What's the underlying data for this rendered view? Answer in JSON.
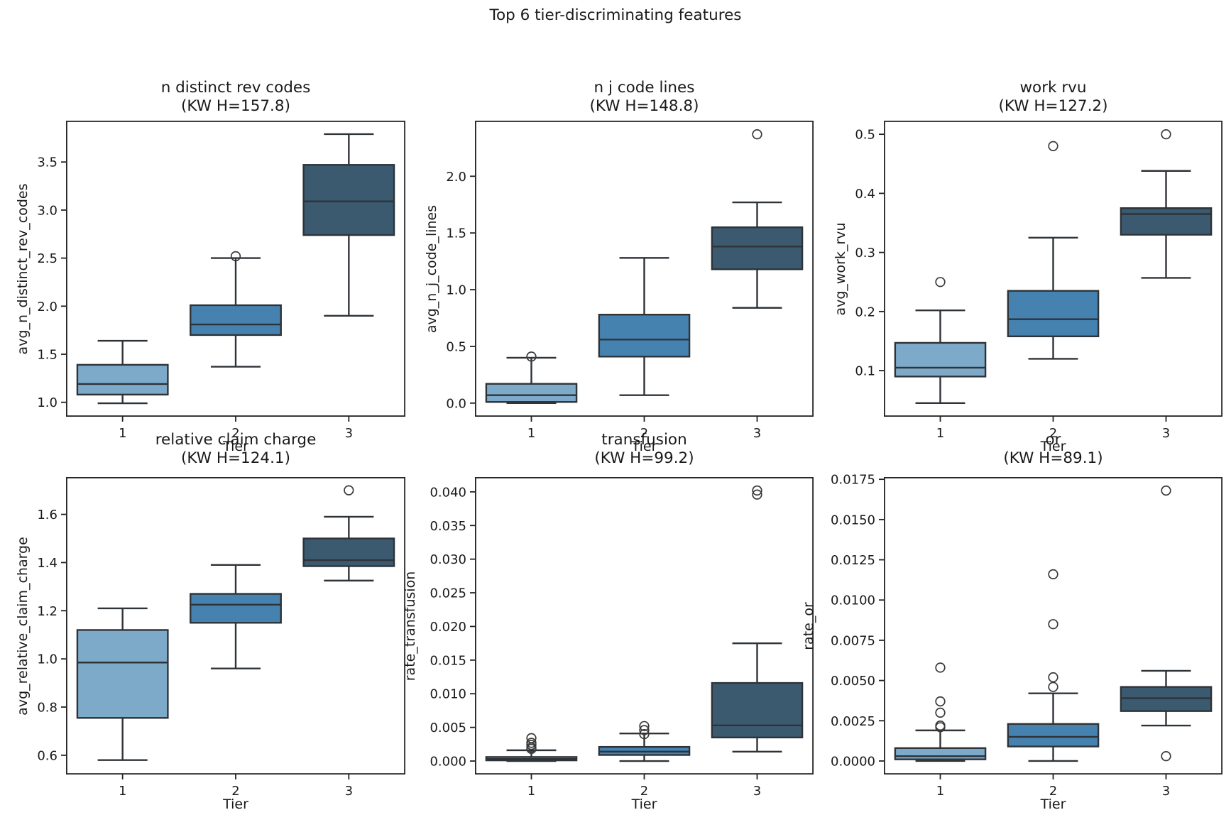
{
  "figure": {
    "title": "Top 6 tier-discriminating features",
    "background": "#ffffff"
  },
  "palette": {
    "tier_colors": [
      "#7daac9",
      "#4682b0",
      "#3b5a70"
    ],
    "box_edge": "#2e3338",
    "outlier_stroke": "#3a3a3a",
    "spine": "#222222",
    "text": "#1a1a1a"
  },
  "chart_data": [
    {
      "type": "box",
      "title": "n distinct rev codes",
      "subtitle": "(KW H=157.8)",
      "kw_h": 157.8,
      "xlabel": "Tier",
      "ylabel": "avg_n_distinct_rev_codes",
      "categories": [
        "1",
        "2",
        "3"
      ],
      "ylim": [
        0.85,
        3.93
      ],
      "ytick_values": [
        1.0,
        1.5,
        2.0,
        2.5,
        3.0,
        3.5
      ],
      "ytick_labels": [
        "1.0",
        "1.5",
        "2.0",
        "2.5",
        "3.0",
        "3.5"
      ],
      "boxes": [
        {
          "category": "1",
          "whisker_low": 0.99,
          "q1": 1.08,
          "median": 1.19,
          "q3": 1.39,
          "whisker_high": 1.64,
          "outliers": []
        },
        {
          "category": "2",
          "whisker_low": 1.37,
          "q1": 1.7,
          "median": 1.81,
          "q3": 2.01,
          "whisker_high": 2.5,
          "outliers": [
            2.52
          ]
        },
        {
          "category": "3",
          "whisker_low": 1.9,
          "q1": 2.74,
          "median": 3.09,
          "q3": 3.47,
          "whisker_high": 3.79,
          "outliers": []
        }
      ]
    },
    {
      "type": "box",
      "title": "n j code lines",
      "subtitle": "(KW H=148.8)",
      "kw_h": 148.8,
      "xlabel": "Tier",
      "ylabel": "avg_n_j_code_lines",
      "categories": [
        "1",
        "2",
        "3"
      ],
      "ylim": [
        -0.12,
        2.49
      ],
      "ytick_values": [
        0.0,
        0.5,
        1.0,
        1.5,
        2.0
      ],
      "ytick_labels": [
        "0.0",
        "0.5",
        "1.0",
        "1.5",
        "2.0"
      ],
      "boxes": [
        {
          "category": "1",
          "whisker_low": 0.0,
          "q1": 0.01,
          "median": 0.07,
          "q3": 0.17,
          "whisker_high": 0.4,
          "outliers": [
            0.41
          ]
        },
        {
          "category": "2",
          "whisker_low": 0.07,
          "q1": 0.41,
          "median": 0.56,
          "q3": 0.78,
          "whisker_high": 1.28,
          "outliers": []
        },
        {
          "category": "3",
          "whisker_low": 0.84,
          "q1": 1.18,
          "median": 1.38,
          "q3": 1.55,
          "whisker_high": 1.77,
          "outliers": [
            2.37
          ]
        }
      ]
    },
    {
      "type": "box",
      "title": "work rvu",
      "subtitle": "(KW H=127.2)",
      "kw_h": 127.2,
      "xlabel": "Tier",
      "ylabel": "avg_work_rvu",
      "categories": [
        "1",
        "2",
        "3"
      ],
      "ylim": [
        0.022,
        0.523
      ],
      "ytick_values": [
        0.1,
        0.2,
        0.3,
        0.4,
        0.5
      ],
      "ytick_labels": [
        "0.1",
        "0.2",
        "0.3",
        "0.4",
        "0.5"
      ],
      "boxes": [
        {
          "category": "1",
          "whisker_low": 0.045,
          "q1": 0.09,
          "median": 0.105,
          "q3": 0.147,
          "whisker_high": 0.202,
          "outliers": [
            0.25
          ]
        },
        {
          "category": "2",
          "whisker_low": 0.12,
          "q1": 0.158,
          "median": 0.187,
          "q3": 0.235,
          "whisker_high": 0.325,
          "outliers": [
            0.48
          ]
        },
        {
          "category": "3",
          "whisker_low": 0.257,
          "q1": 0.33,
          "median": 0.365,
          "q3": 0.375,
          "whisker_high": 0.438,
          "outliers": [
            0.5
          ]
        }
      ]
    },
    {
      "type": "box",
      "title": "relative claim charge",
      "subtitle": "(KW H=124.1)",
      "kw_h": 124.1,
      "xlabel": "Tier",
      "ylabel": "avg_relative_claim_charge",
      "categories": [
        "1",
        "2",
        "3"
      ],
      "ylim": [
        0.52,
        1.755
      ],
      "ytick_values": [
        0.6,
        0.8,
        1.0,
        1.2,
        1.4,
        1.6
      ],
      "ytick_labels": [
        "0.6",
        "0.8",
        "1.0",
        "1.2",
        "1.4",
        "1.6"
      ],
      "boxes": [
        {
          "category": "1",
          "whisker_low": 0.58,
          "q1": 0.755,
          "median": 0.985,
          "q3": 1.12,
          "whisker_high": 1.21,
          "outliers": []
        },
        {
          "category": "2",
          "whisker_low": 0.96,
          "q1": 1.15,
          "median": 1.225,
          "q3": 1.27,
          "whisker_high": 1.39,
          "outliers": []
        },
        {
          "category": "3",
          "whisker_low": 1.325,
          "q1": 1.385,
          "median": 1.41,
          "q3": 1.5,
          "whisker_high": 1.59,
          "outliers": [
            1.7
          ]
        }
      ]
    },
    {
      "type": "box",
      "title": "transfusion",
      "subtitle": "(KW H=99.2)",
      "kw_h": 99.2,
      "xlabel": "Tier",
      "ylabel": "rate_transfusion",
      "categories": [
        "1",
        "2",
        "3"
      ],
      "ylim": [
        -0.002,
        0.0422
      ],
      "ytick_values": [
        0.0,
        0.005,
        0.01,
        0.015,
        0.02,
        0.025,
        0.03,
        0.035,
        0.04
      ],
      "ytick_labels": [
        "0.000",
        "0.005",
        "0.010",
        "0.015",
        "0.020",
        "0.025",
        "0.030",
        "0.035",
        "0.040"
      ],
      "boxes": [
        {
          "category": "1",
          "whisker_low": 0.0,
          "q1": 0.0001,
          "median": 0.0003,
          "q3": 0.0006,
          "whisker_high": 0.0016,
          "outliers": [
            0.0018,
            0.002,
            0.0024,
            0.0027,
            0.0034
          ]
        },
        {
          "category": "2",
          "whisker_low": 0.0,
          "q1": 0.0009,
          "median": 0.0014,
          "q3": 0.0021,
          "whisker_high": 0.0041,
          "outliers": [
            0.004,
            0.0046,
            0.0052
          ]
        },
        {
          "category": "3",
          "whisker_low": 0.0014,
          "q1": 0.0035,
          "median": 0.0053,
          "q3": 0.0116,
          "whisker_high": 0.0175,
          "outliers": [
            0.0396,
            0.0402
          ]
        }
      ]
    },
    {
      "type": "box",
      "title": "or",
      "subtitle": "(KW H=89.1)",
      "kw_h": 89.1,
      "xlabel": "Tier",
      "ylabel": "rate_or",
      "categories": [
        "1",
        "2",
        "3"
      ],
      "ylim": [
        -0.00084,
        0.01764
      ],
      "ytick_values": [
        0.0,
        0.0025,
        0.005,
        0.0075,
        0.01,
        0.0125,
        0.015,
        0.0175
      ],
      "ytick_labels": [
        "0.0000",
        "0.0025",
        "0.0050",
        "0.0075",
        "0.0100",
        "0.0125",
        "0.0150",
        "0.0175"
      ],
      "boxes": [
        {
          "category": "1",
          "whisker_low": 0.0,
          "q1": 0.0001,
          "median": 0.0003,
          "q3": 0.0008,
          "whisker_high": 0.0019,
          "outliers": [
            0.0021,
            0.0022,
            0.003,
            0.0037,
            0.0058
          ]
        },
        {
          "category": "2",
          "whisker_low": 0.0,
          "q1": 0.0009,
          "median": 0.0015,
          "q3": 0.0023,
          "whisker_high": 0.0042,
          "outliers": [
            0.0046,
            0.0052,
            0.0085,
            0.0116
          ]
        },
        {
          "category": "3",
          "whisker_low": 0.0022,
          "q1": 0.0031,
          "median": 0.0039,
          "q3": 0.0046,
          "whisker_high": 0.0056,
          "outliers": [
            0.0003,
            0.0168
          ]
        }
      ]
    }
  ]
}
